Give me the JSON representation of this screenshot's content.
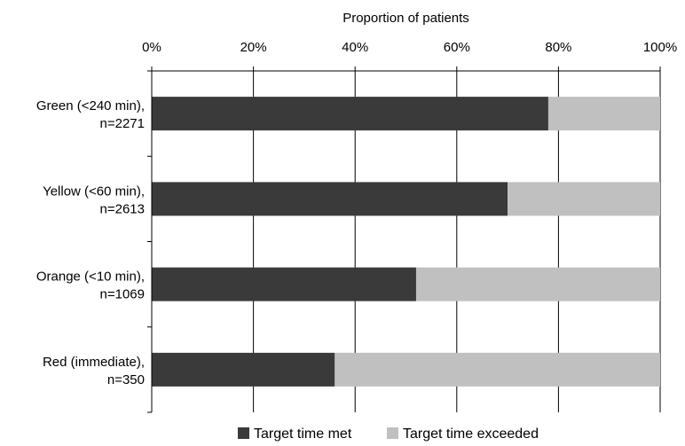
{
  "chart_data": {
    "type": "bar",
    "orientation": "horizontal",
    "stacked": true,
    "title": "",
    "xlabel": "Proportion of patients",
    "ylabel": "",
    "xlim": [
      0,
      100
    ],
    "x_ticks": [
      "0%",
      "20%",
      "40%",
      "60%",
      "80%",
      "100%"
    ],
    "categories": [
      [
        "Green (<240 min),",
        "n=2271"
      ],
      [
        "Yellow (<60 min),",
        "n=2613"
      ],
      [
        "Orange (<10 min),",
        "n=1069"
      ],
      [
        "Red (immediate),",
        "n=350"
      ]
    ],
    "series": [
      {
        "name": "Target time met",
        "color": "#3a3a3a",
        "values": [
          78,
          70,
          52,
          36
        ]
      },
      {
        "name": "Target time exceeded",
        "color": "#c0c0c0",
        "values": [
          22,
          30,
          48,
          64
        ]
      }
    ],
    "gridlines": true,
    "legend_position": "bottom"
  }
}
